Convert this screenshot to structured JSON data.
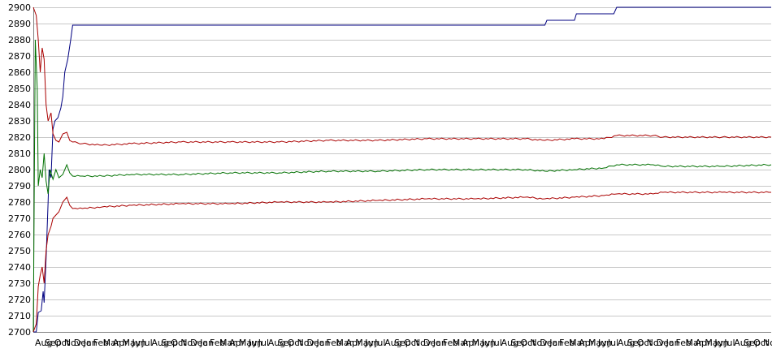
{
  "chart_data": {
    "type": "line",
    "title": "",
    "xlabel": "",
    "ylabel": "",
    "ylim": [
      2700,
      2900
    ],
    "yticks": [
      2700,
      2710,
      2720,
      2730,
      2740,
      2750,
      2760,
      2770,
      2780,
      2790,
      2800,
      2810,
      2820,
      2830,
      2840,
      2850,
      2860,
      2870,
      2880,
      2890,
      2900
    ],
    "grid": "horizontal",
    "legend": "none",
    "x_tick_labels": [
      "Aug",
      "Sep",
      "Oct",
      "Nov",
      "Dec",
      "Jan",
      "Feb",
      "Mar",
      "Apr",
      "May",
      "Jun",
      "Jul",
      "Aug",
      "Sep",
      "Oct",
      "Nov",
      "Dec",
      "Jan",
      "Feb",
      "Mar",
      "Apr",
      "May",
      "Jun",
      "Jul",
      "Aug",
      "Sep",
      "Oct",
      "Nov",
      "Dec",
      "Jan",
      "Feb",
      "Mar",
      "Apr",
      "May",
      "Jun",
      "Jul",
      "Aug",
      "Sep",
      "Oct",
      "Nov",
      "Dec",
      "Jan",
      "Feb",
      "Mar",
      "Apr",
      "May",
      "Jun",
      "Jul",
      "Aug",
      "Sep",
      "Oct",
      "Nov",
      "Dec",
      "Jan",
      "Feb",
      "Mar",
      "Apr",
      "May",
      "Jun",
      "Jul",
      "Aug",
      "Sep",
      "Oct",
      "Nov",
      "Dec",
      "Jan",
      "Feb",
      "Mar",
      "Apr",
      "May",
      "Jun",
      "Jul",
      "Aug",
      "Sep",
      "Oct",
      "Nov"
    ],
    "x_range": [
      0,
      75
    ],
    "series": [
      {
        "color": "#000080",
        "points": [
          [
            0,
            2700
          ],
          [
            0.3,
            2700
          ],
          [
            0.5,
            2712
          ],
          [
            0.8,
            2713
          ],
          [
            1.0,
            2725
          ],
          [
            1.1,
            2718
          ],
          [
            1.3,
            2745
          ],
          [
            1.5,
            2780
          ],
          [
            1.6,
            2800
          ],
          [
            1.8,
            2795
          ],
          [
            2.0,
            2825
          ],
          [
            2.2,
            2830
          ],
          [
            2.5,
            2832
          ],
          [
            2.8,
            2838
          ],
          [
            3.0,
            2845
          ],
          [
            3.2,
            2860
          ],
          [
            3.5,
            2868
          ],
          [
            3.8,
            2880
          ],
          [
            4.0,
            2889
          ],
          [
            27,
            2889
          ],
          [
            40,
            2889
          ],
          [
            52,
            2889
          ],
          [
            52.2,
            2892
          ],
          [
            55,
            2892
          ],
          [
            55.2,
            2896
          ],
          [
            59,
            2896
          ],
          [
            59.3,
            2900
          ],
          [
            75,
            2900
          ]
        ]
      },
      {
        "color": "#aa0000",
        "points": [
          [
            0,
            2900
          ],
          [
            0.3,
            2895
          ],
          [
            0.5,
            2880
          ],
          [
            0.7,
            2860
          ],
          [
            0.9,
            2875
          ],
          [
            1.1,
            2868
          ],
          [
            1.3,
            2840
          ],
          [
            1.5,
            2830
          ],
          [
            1.8,
            2835
          ],
          [
            2.0,
            2822
          ],
          [
            2.3,
            2818
          ],
          [
            2.6,
            2817
          ],
          [
            3.0,
            2822
          ],
          [
            3.4,
            2823
          ],
          [
            3.7,
            2818
          ],
          [
            4.0,
            2817
          ],
          [
            5.0,
            2816
          ],
          [
            7,
            2815
          ],
          [
            10,
            2816
          ],
          [
            15,
            2817
          ],
          [
            20,
            2817
          ],
          [
            25,
            2817
          ],
          [
            30,
            2818
          ],
          [
            35,
            2818
          ],
          [
            40,
            2819
          ],
          [
            45,
            2819
          ],
          [
            50,
            2819
          ],
          [
            52,
            2818
          ],
          [
            55,
            2819
          ],
          [
            58,
            2819
          ],
          [
            59.3,
            2821
          ],
          [
            63,
            2821
          ],
          [
            64,
            2820
          ],
          [
            70,
            2820
          ],
          [
            75,
            2820
          ]
        ]
      },
      {
        "color": "#007000",
        "points": [
          [
            0,
            2700
          ],
          [
            0.2,
            2880
          ],
          [
            0.4,
            2850
          ],
          [
            0.5,
            2790
          ],
          [
            0.7,
            2800
          ],
          [
            0.9,
            2795
          ],
          [
            1.1,
            2810
          ],
          [
            1.3,
            2793
          ],
          [
            1.5,
            2785
          ],
          [
            1.7,
            2800
          ],
          [
            2.0,
            2794
          ],
          [
            2.3,
            2800
          ],
          [
            2.6,
            2795
          ],
          [
            3.0,
            2797
          ],
          [
            3.4,
            2803
          ],
          [
            3.7,
            2798
          ],
          [
            4.0,
            2796
          ],
          [
            5.0,
            2796
          ],
          [
            7,
            2796
          ],
          [
            10,
            2797
          ],
          [
            15,
            2797
          ],
          [
            20,
            2798
          ],
          [
            25,
            2798
          ],
          [
            30,
            2799
          ],
          [
            35,
            2799
          ],
          [
            40,
            2800
          ],
          [
            45,
            2800
          ],
          [
            50,
            2800
          ],
          [
            52,
            2799
          ],
          [
            55,
            2800
          ],
          [
            58,
            2801
          ],
          [
            59.3,
            2803
          ],
          [
            63,
            2803
          ],
          [
            64,
            2802
          ],
          [
            70,
            2802
          ],
          [
            75,
            2803
          ]
        ]
      },
      {
        "color": "#aa0000",
        "points": [
          [
            0,
            2700
          ],
          [
            0.3,
            2705
          ],
          [
            0.5,
            2728
          ],
          [
            0.7,
            2735
          ],
          [
            0.9,
            2740
          ],
          [
            1.1,
            2730
          ],
          [
            1.3,
            2750
          ],
          [
            1.5,
            2760
          ],
          [
            1.8,
            2765
          ],
          [
            2.0,
            2770
          ],
          [
            2.3,
            2772
          ],
          [
            2.6,
            2774
          ],
          [
            3.0,
            2780
          ],
          [
            3.4,
            2783
          ],
          [
            3.7,
            2778
          ],
          [
            4.0,
            2776
          ],
          [
            5.0,
            2776
          ],
          [
            7,
            2777
          ],
          [
            10,
            2778
          ],
          [
            15,
            2779
          ],
          [
            20,
            2779
          ],
          [
            25,
            2780
          ],
          [
            30,
            2780
          ],
          [
            35,
            2781
          ],
          [
            40,
            2782
          ],
          [
            45,
            2782
          ],
          [
            50,
            2783
          ],
          [
            52,
            2782
          ],
          [
            55,
            2783
          ],
          [
            58,
            2784
          ],
          [
            59.3,
            2785
          ],
          [
            63,
            2785
          ],
          [
            64,
            2786
          ],
          [
            70,
            2786
          ],
          [
            75,
            2786
          ]
        ]
      }
    ]
  }
}
